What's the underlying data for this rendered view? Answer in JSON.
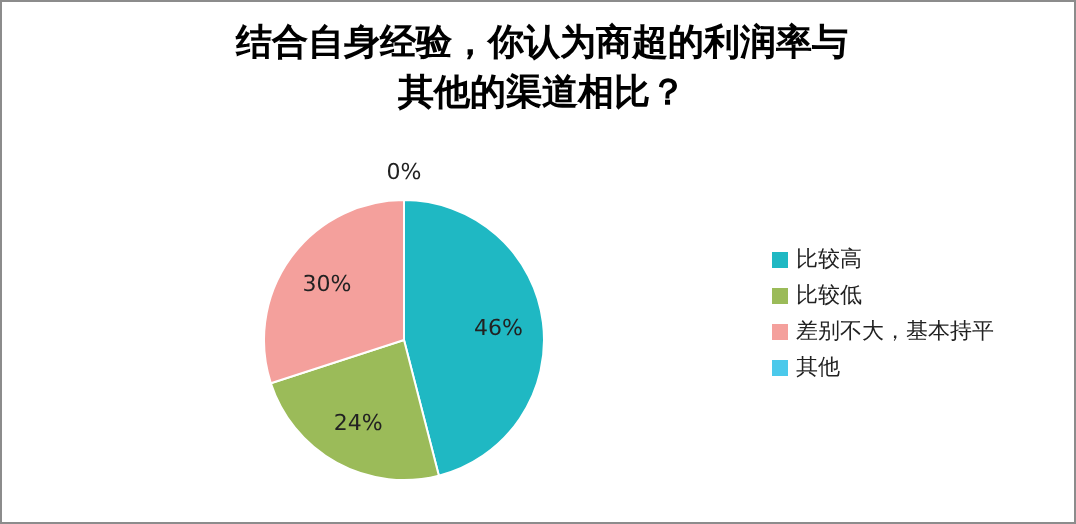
{
  "chart_data": {
    "type": "pie",
    "title": "结合自身经验，你认为商超的利润率与其他的渠道相比？",
    "categories": [
      "比较高",
      "比较低",
      "差别不大，基本持平",
      "其他"
    ],
    "values": [
      46,
      24,
      30,
      0
    ],
    "colors": [
      "#1fb8c3",
      "#9bbb59",
      "#f4a09c",
      "#4bc9eb"
    ],
    "value_labels": [
      "46%",
      "24%",
      "30%",
      "0%"
    ],
    "legend": "right"
  }
}
